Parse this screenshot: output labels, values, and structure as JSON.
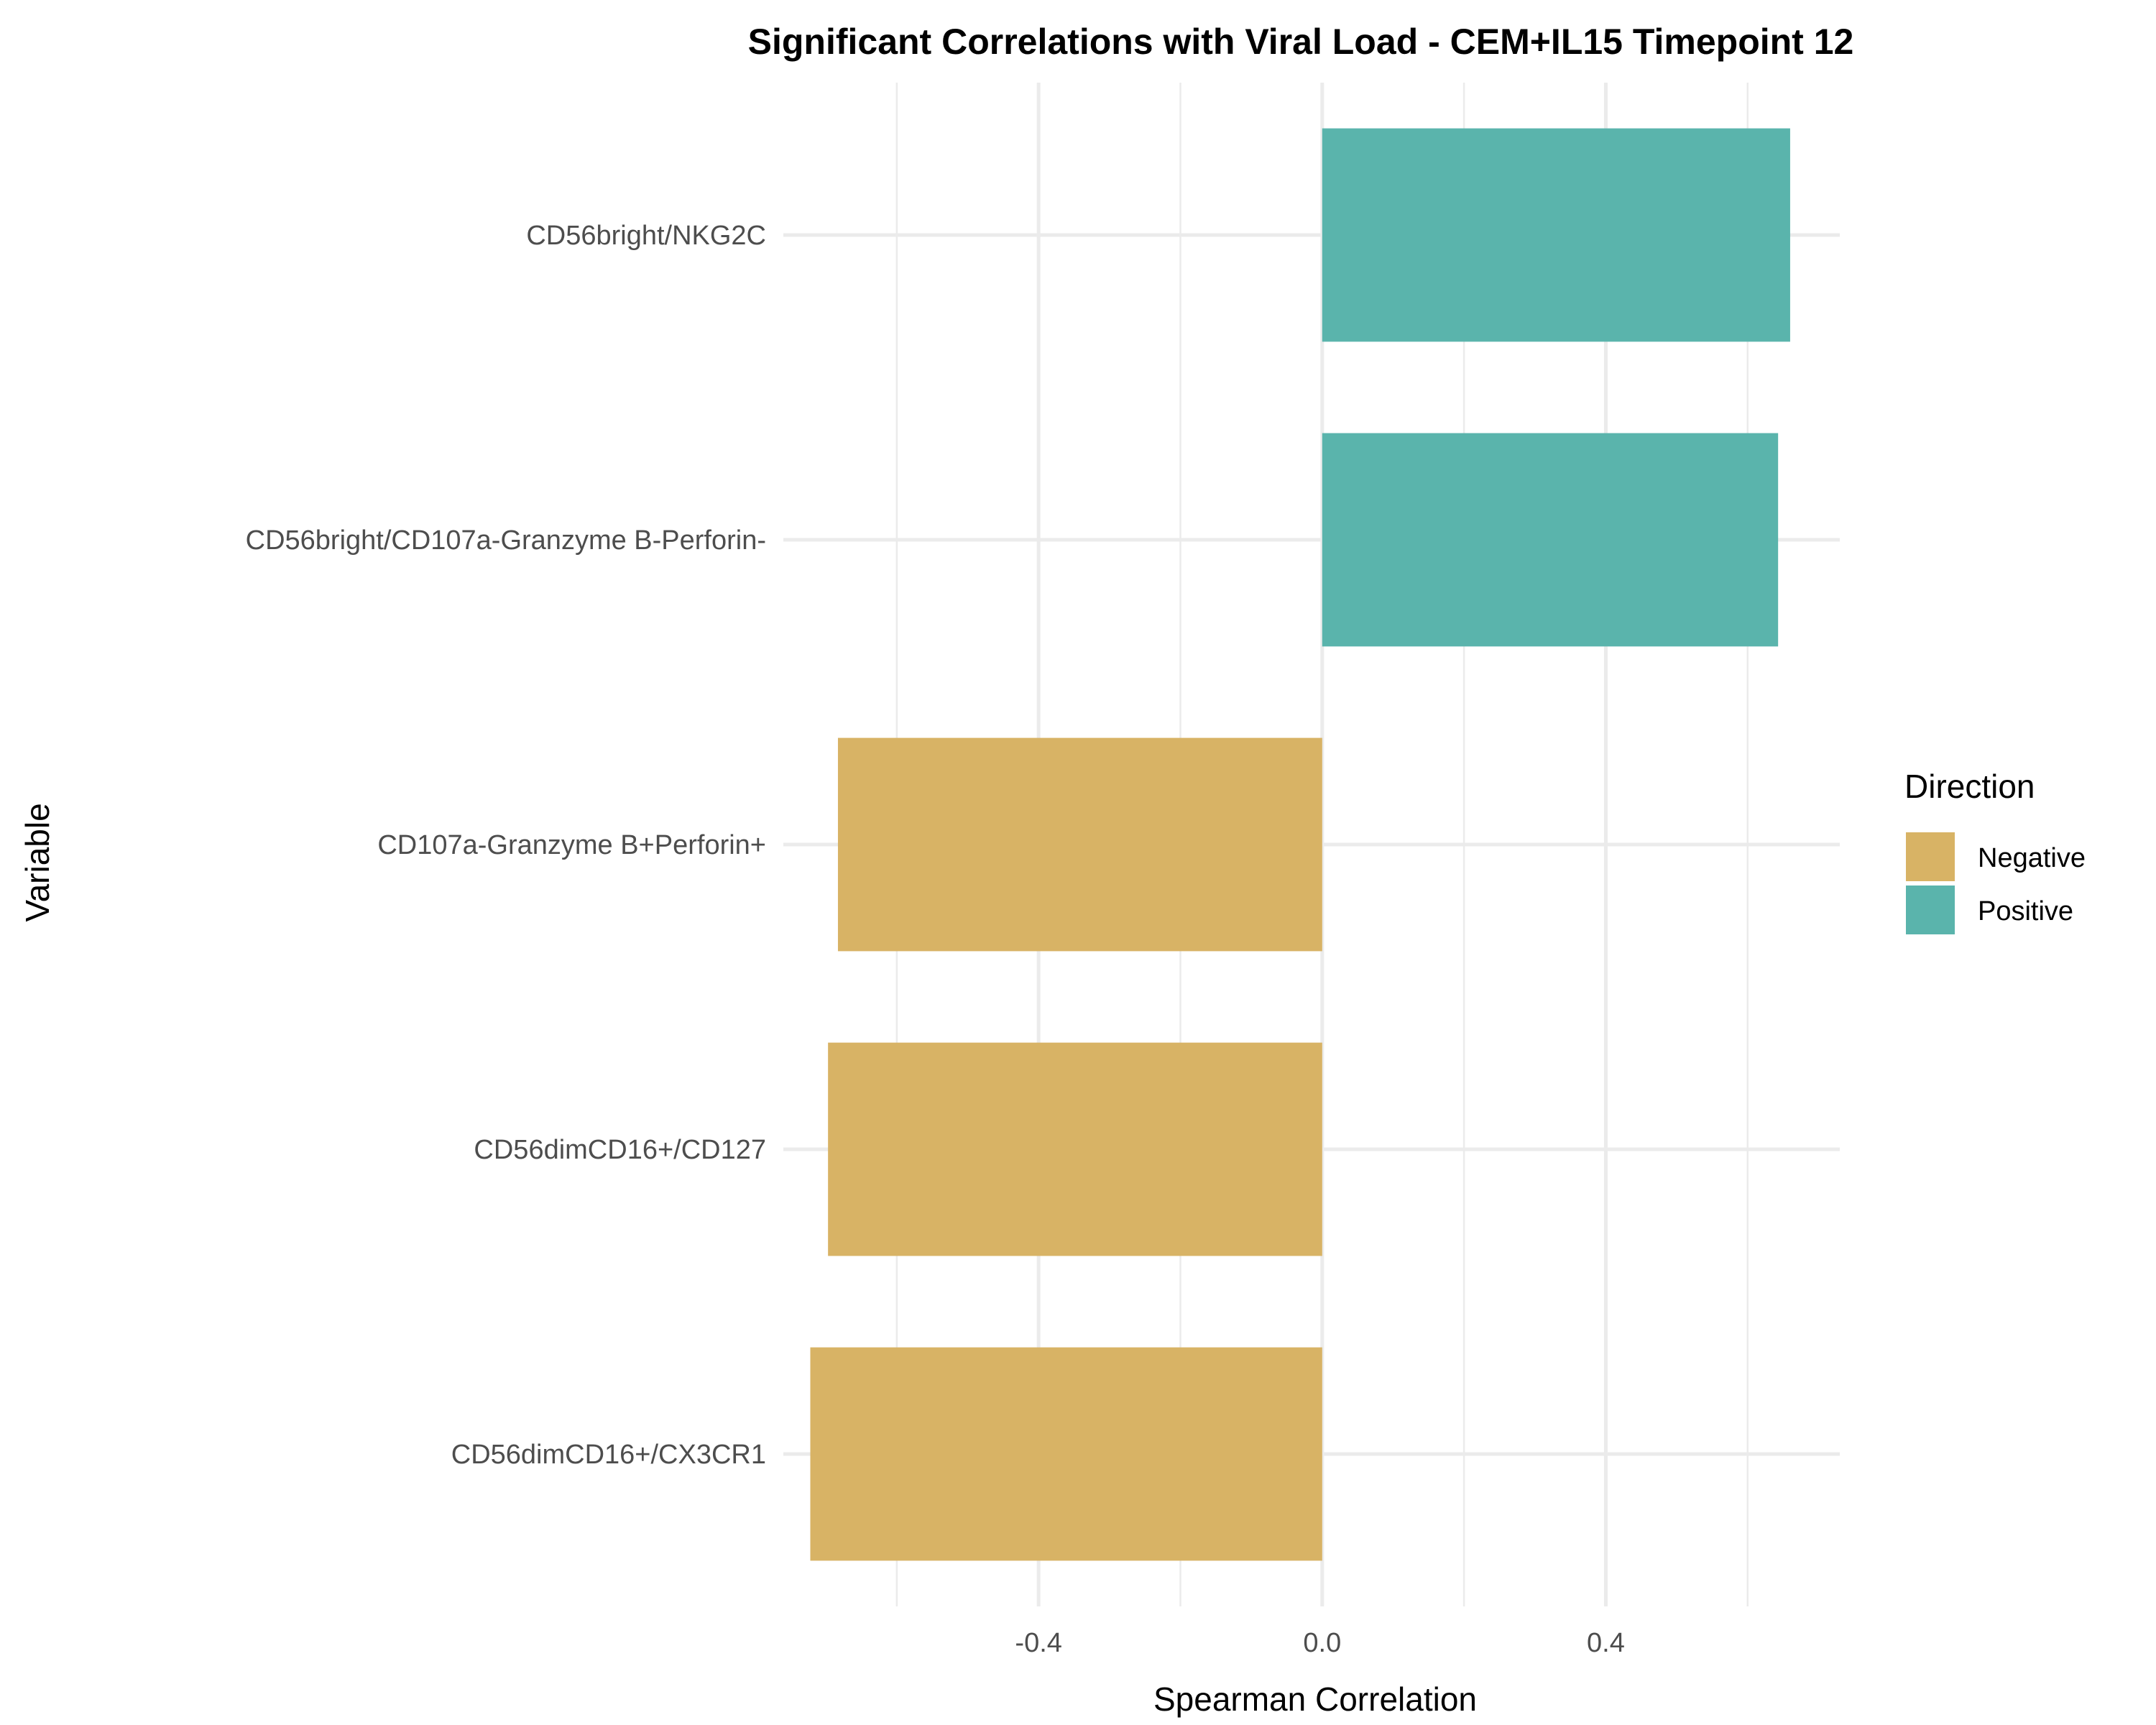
{
  "chart_data": {
    "type": "bar",
    "orientation": "horizontal",
    "title": "Significant Correlations with Viral Load - CEM+IL15 Timepoint 12",
    "xlabel": "Spearman Correlation",
    "ylabel": "Variable",
    "xlim": [
      -0.76,
      0.73
    ],
    "x_ticks": [
      -0.4,
      0.0,
      0.4
    ],
    "x_tick_labels": [
      "-0.4",
      "0.0",
      "0.4"
    ],
    "x_minor_ticks": [
      -0.6,
      -0.2,
      0.2,
      0.6
    ],
    "grid": true,
    "legend": {
      "title": "Direction",
      "placement": "right",
      "entries": [
        {
          "label": "Negative",
          "color": "#D8B365"
        },
        {
          "label": "Positive",
          "color": "#5AB4AC"
        }
      ]
    },
    "categories": [
      "CD56bright/NKG2C",
      "CD56bright/CD107a-Granzyme B-Perforin-",
      "CD107a-Granzyme B+Perforin+",
      "CD56dimCD16+/CD127",
      "CD56dimCD16+/CX3CR1"
    ],
    "values": [
      0.66,
      0.643,
      -0.683,
      -0.697,
      -0.722
    ],
    "directions": [
      "Positive",
      "Positive",
      "Negative",
      "Negative",
      "Negative"
    ]
  }
}
